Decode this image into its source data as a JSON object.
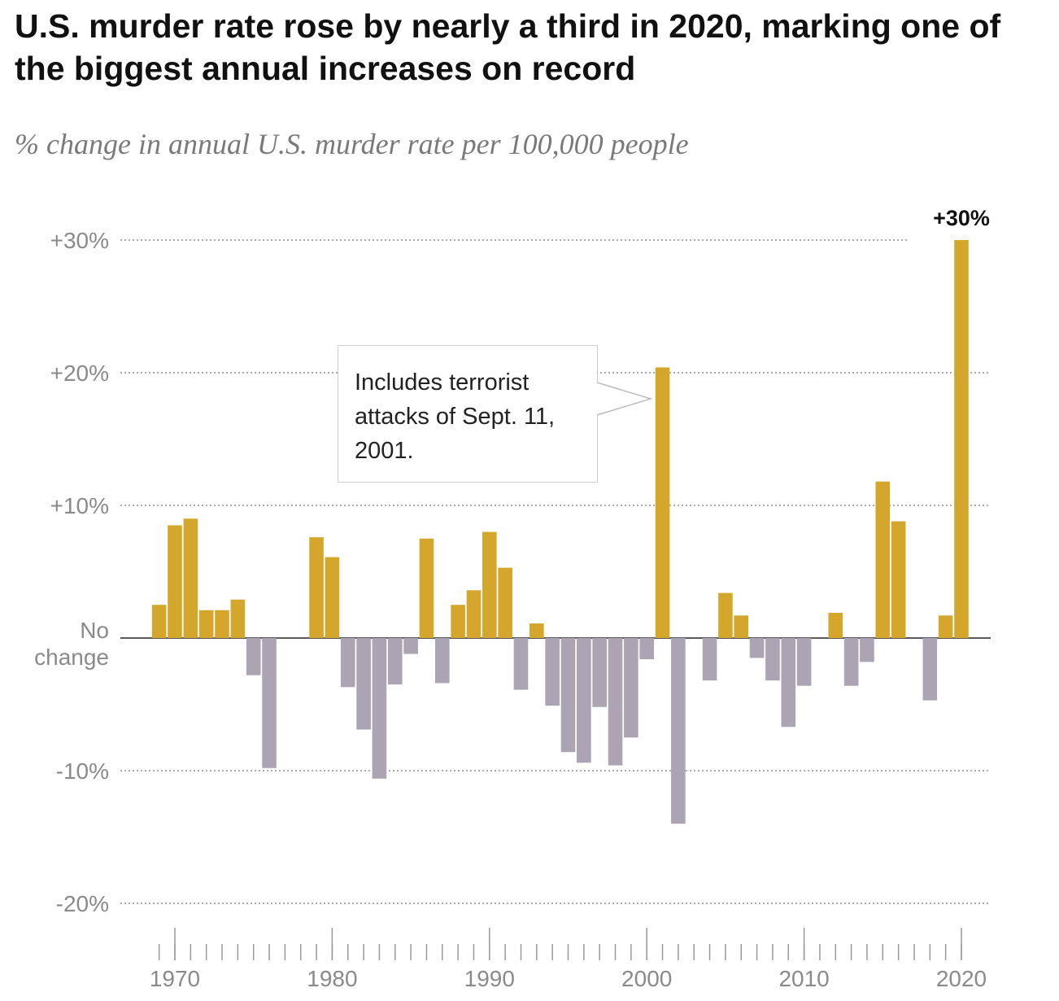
{
  "chart_data": {
    "type": "bar",
    "title": "U.S. murder rate rose by nearly a third in 2020, marking one of the biggest annual increases on record",
    "subtitle": "% change in annual U.S. murder rate per 100,000 people",
    "x": [
      1969,
      1970,
      1971,
      1972,
      1973,
      1974,
      1975,
      1976,
      1977,
      1978,
      1979,
      1980,
      1981,
      1982,
      1983,
      1984,
      1985,
      1986,
      1987,
      1988,
      1989,
      1990,
      1991,
      1992,
      1993,
      1994,
      1995,
      1996,
      1997,
      1998,
      1999,
      2000,
      2001,
      2002,
      2003,
      2004,
      2005,
      2006,
      2007,
      2008,
      2009,
      2010,
      2011,
      2012,
      2013,
      2014,
      2015,
      2016,
      2017,
      2018,
      2019,
      2020
    ],
    "values": [
      2.5,
      8.5,
      9.0,
      2.1,
      2.1,
      2.9,
      -2.8,
      -9.8,
      0,
      0,
      7.6,
      6.1,
      -3.7,
      -6.9,
      -10.6,
      -3.5,
      -1.2,
      7.5,
      -3.4,
      2.5,
      3.6,
      8.0,
      5.3,
      -3.9,
      1.1,
      -5.1,
      -8.6,
      -9.4,
      -5.2,
      -9.6,
      -7.5,
      -1.6,
      20.4,
      -14.0,
      0,
      -3.2,
      3.4,
      1.7,
      -1.5,
      -3.2,
      -6.7,
      -3.6,
      0,
      1.9,
      -3.6,
      -1.8,
      11.8,
      8.8,
      0,
      -4.7,
      1.7,
      30
    ],
    "value_labels": [
      null,
      null,
      null,
      null,
      null,
      null,
      null,
      null,
      null,
      null,
      null,
      null,
      null,
      null,
      null,
      null,
      null,
      null,
      null,
      null,
      null,
      null,
      null,
      null,
      null,
      null,
      null,
      null,
      null,
      null,
      null,
      null,
      null,
      null,
      null,
      null,
      null,
      null,
      null,
      null,
      null,
      null,
      null,
      null,
      null,
      null,
      null,
      null,
      null,
      null,
      null,
      "+30%"
    ],
    "positive_color": "#d4a72c",
    "negative_color": "#aca4b2",
    "ylim": [
      -20,
      32
    ],
    "yticks": [
      {
        "value": -20,
        "label": "-20%"
      },
      {
        "value": -10,
        "label": "-10%"
      },
      {
        "value": 0,
        "label": "No change"
      },
      {
        "value": 10,
        "label": "+10%"
      },
      {
        "value": 20,
        "label": "+20%"
      },
      {
        "value": 30,
        "label": "+30%"
      }
    ],
    "xlim": [
      1968,
      2022
    ],
    "xticks": [
      1970,
      1980,
      1990,
      2000,
      2010,
      2020
    ],
    "grid": true,
    "annotation": "Includes terrorist attacks of Sept. 11, 2001."
  }
}
